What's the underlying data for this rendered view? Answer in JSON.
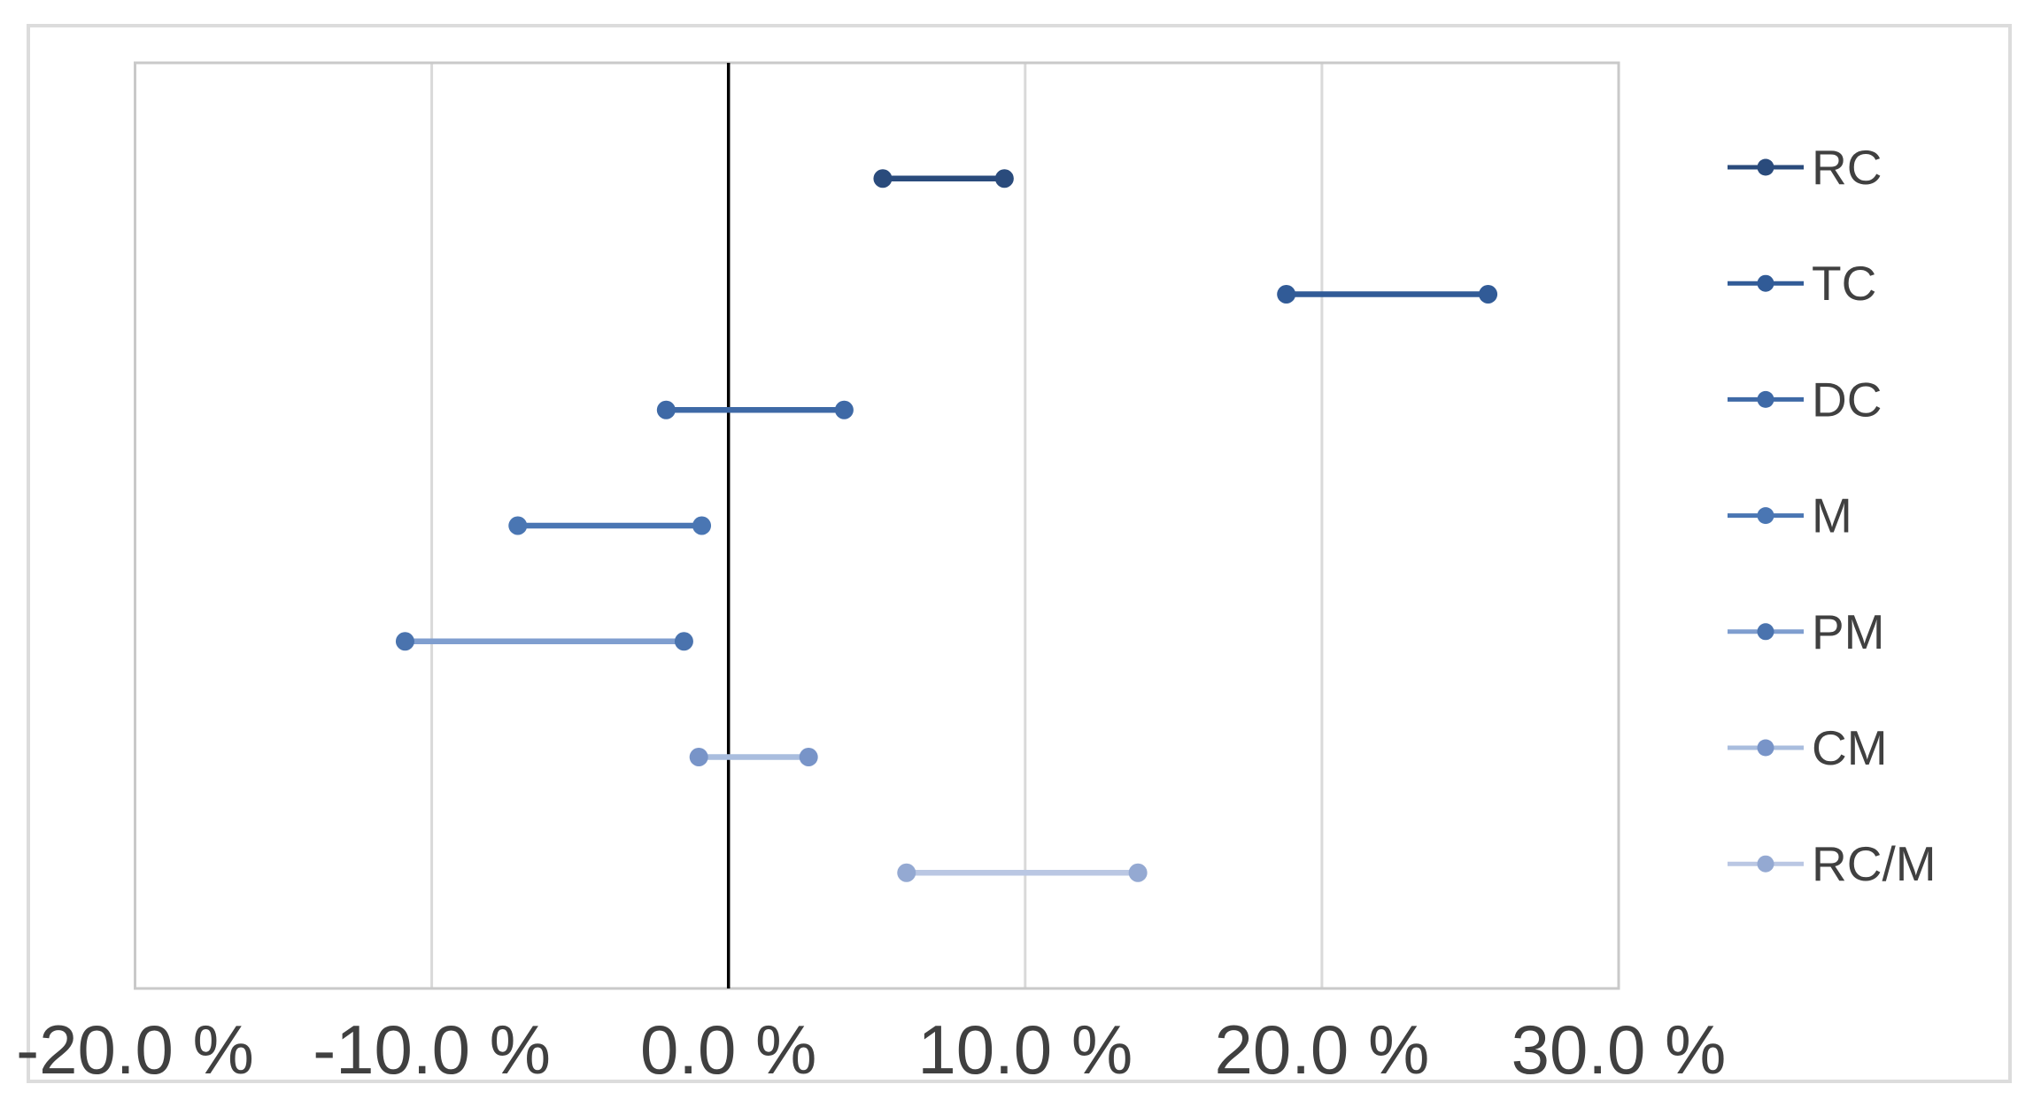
{
  "chart_data": {
    "type": "scatter",
    "subtype": "horizontal-range-dumbbell",
    "title": "",
    "x_axis": {
      "min": -20,
      "max": 30,
      "unit": "%",
      "tick_values": [
        -20,
        -10,
        0,
        10,
        20,
        30
      ],
      "tick_labels": [
        "-20.0 %",
        "-10.0 %",
        "0.0 %",
        "10.0 %",
        "20.0 %",
        "30.0 %"
      ]
    },
    "y_axis": {
      "visible": false,
      "rows_total": 8,
      "note": "7 category rows spaced evenly, top row = RC"
    },
    "grid": true,
    "series": [
      {
        "name": "RC",
        "row": 7,
        "from_pct": 5.2,
        "to_pct": 9.3,
        "line_color": "#2a4b7c",
        "marker_color": "#2a4b7c"
      },
      {
        "name": "TC",
        "row": 6,
        "from_pct": 18.8,
        "to_pct": 25.6,
        "line_color": "#315b97",
        "marker_color": "#315b97"
      },
      {
        "name": "DC",
        "row": 5,
        "from_pct": -2.1,
        "to_pct": 3.9,
        "line_color": "#3e69a6",
        "marker_color": "#3e69a6"
      },
      {
        "name": "M",
        "row": 4,
        "from_pct": -7.1,
        "to_pct": -0.9,
        "line_color": "#4a76b3",
        "marker_color": "#4a76b3"
      },
      {
        "name": "PM",
        "row": 3,
        "from_pct": -10.9,
        "to_pct": -1.5,
        "line_color": "#7f9ecf",
        "marker_color": "#4a73ae"
      },
      {
        "name": "CM",
        "row": 2,
        "from_pct": -1.0,
        "to_pct": 2.7,
        "line_color": "#a9bdde",
        "marker_color": "#7894c8"
      },
      {
        "name": "RC/M",
        "row": 1,
        "from_pct": 6.0,
        "to_pct": 13.8,
        "line_color": "#bac7e3",
        "marker_color": "#94a9d2"
      }
    ],
    "legend": {
      "position": "right",
      "labels": [
        "RC",
        "TC",
        "DC",
        "M",
        "PM",
        "CM",
        "RC/M"
      ]
    },
    "colors": {
      "gridline": "#d9d9d9",
      "plot_border": "#c9c9c9",
      "zero_axis": "#000000",
      "text": "#404040",
      "background": "#ffffff",
      "outer_border": "#dcdcdc"
    }
  }
}
